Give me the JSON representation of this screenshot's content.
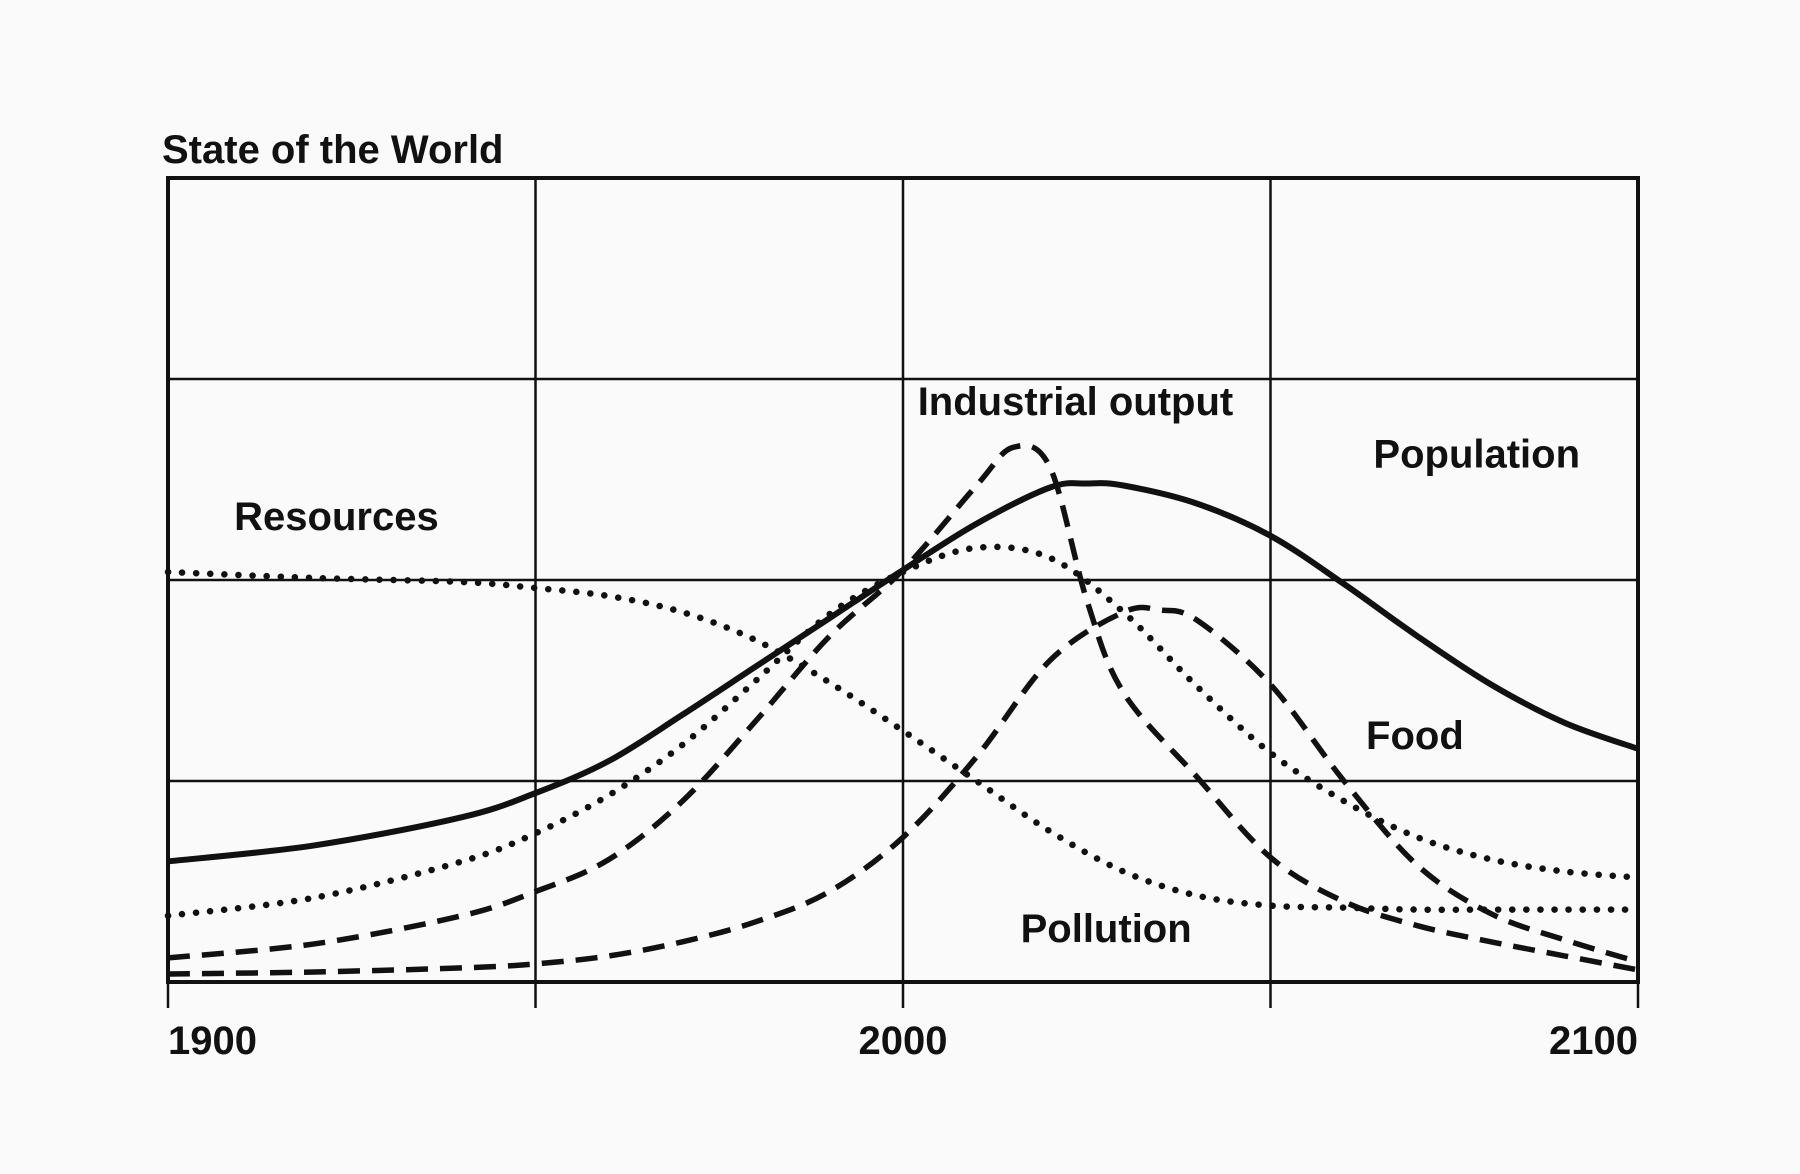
{
  "chart_data": {
    "type": "line",
    "title": "State of the World",
    "xlabel": "",
    "ylabel": "",
    "xlim": [
      1900,
      2100
    ],
    "ylim": [
      0,
      4
    ],
    "xticks": [
      1900,
      1950,
      2000,
      2050,
      2100
    ],
    "xtick_labels": [
      {
        "x": 1900,
        "label": "1900"
      },
      {
        "x": 2000,
        "label": "2000"
      },
      {
        "x": 2100,
        "label": "2100"
      }
    ],
    "yticks": [
      0,
      1,
      2,
      3,
      4
    ],
    "grid": true,
    "colors": {
      "ink": "#111111",
      "background": "#fafafa"
    },
    "series": [
      {
        "name": "Resources",
        "style": "dotted",
        "x": [
          1900,
          1920,
          1940,
          1950,
          1960,
          1970,
          1980,
          1990,
          2000,
          2010,
          2020,
          2030,
          2040,
          2050,
          2060,
          2070,
          2080,
          2090,
          2100
        ],
        "y": [
          2.04,
          2.01,
          1.99,
          1.96,
          1.92,
          1.84,
          1.7,
          1.49,
          1.25,
          1.0,
          0.75,
          0.55,
          0.43,
          0.38,
          0.37,
          0.36,
          0.36,
          0.36,
          0.36
        ]
      },
      {
        "name": "Population",
        "style": "solid",
        "x": [
          1900,
          1920,
          1940,
          1950,
          1960,
          1970,
          1980,
          1990,
          2000,
          2010,
          2020,
          2025,
          2030,
          2040,
          2050,
          2060,
          2070,
          2080,
          2090,
          2100
        ],
        "y": [
          0.6,
          0.68,
          0.82,
          0.94,
          1.1,
          1.33,
          1.57,
          1.81,
          2.05,
          2.28,
          2.46,
          2.48,
          2.47,
          2.38,
          2.22,
          1.98,
          1.72,
          1.48,
          1.29,
          1.16
        ]
      },
      {
        "name": "Food",
        "style": "dotted",
        "x": [
          1900,
          1920,
          1940,
          1950,
          1960,
          1970,
          1980,
          1990,
          2000,
          2010,
          2020,
          2030,
          2040,
          2050,
          2060,
          2070,
          2080,
          2090,
          2100
        ],
        "y": [
          0.33,
          0.42,
          0.6,
          0.74,
          0.93,
          1.18,
          1.5,
          1.83,
          2.04,
          2.16,
          2.11,
          1.84,
          1.47,
          1.14,
          0.9,
          0.72,
          0.61,
          0.55,
          0.52
        ]
      },
      {
        "name": "Industrial output",
        "style": "dashed",
        "x": [
          1900,
          1920,
          1940,
          1950,
          1960,
          1970,
          1980,
          1990,
          2000,
          2010,
          2015,
          2020,
          2025,
          2030,
          2040,
          2050,
          2060,
          2070,
          2080,
          2090,
          2100
        ],
        "y": [
          0.12,
          0.19,
          0.33,
          0.45,
          0.61,
          0.9,
          1.3,
          1.72,
          2.05,
          2.47,
          2.66,
          2.56,
          1.9,
          1.44,
          1.02,
          0.62,
          0.4,
          0.28,
          0.2,
          0.13,
          0.06
        ]
      },
      {
        "name": "Pollution",
        "style": "dashed",
        "x": [
          1900,
          1920,
          1940,
          1950,
          1960,
          1970,
          1980,
          1990,
          2000,
          2010,
          2020,
          2030,
          2035,
          2040,
          2050,
          2060,
          2070,
          2080,
          2090,
          2100
        ],
        "y": [
          0.04,
          0.05,
          0.07,
          0.09,
          0.13,
          0.2,
          0.3,
          0.45,
          0.72,
          1.12,
          1.6,
          1.84,
          1.85,
          1.8,
          1.48,
          1.0,
          0.58,
          0.34,
          0.21,
          0.1
        ]
      }
    ],
    "annotations": [
      {
        "text": "Resources",
        "x": 1909,
        "y": 2.25
      },
      {
        "text": "Industrial output",
        "x": 2002,
        "y": 2.82
      },
      {
        "text": "Population",
        "x": 2064,
        "y": 2.56
      },
      {
        "text": "Food",
        "x": 2063,
        "y": 1.16
      },
      {
        "text": "Pollution",
        "x": 2016,
        "y": 0.2
      }
    ]
  }
}
